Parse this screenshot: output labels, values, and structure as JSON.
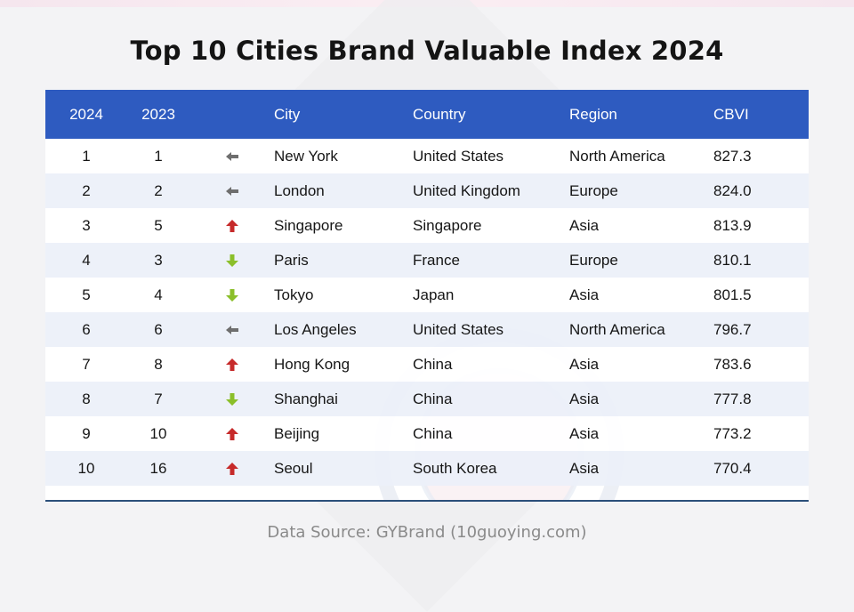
{
  "title": "Top 10 Cities Brand Valuable Index 2024",
  "source": "Data Source: GYBrand (10guoying.com)",
  "columns": {
    "rank2024": "2024",
    "rank2023": "2023",
    "city": "City",
    "country": "Country",
    "region": "Region",
    "cbvi": "CBVI"
  },
  "colors": {
    "header": "#2e5bc0",
    "up": "#c62a2a",
    "down": "#8bbf2a",
    "same": "#6e6e6e"
  },
  "chart_data": {
    "type": "table",
    "title": "Top 10 Cities Brand Valuable Index 2024",
    "columns": [
      "2024",
      "2023",
      "",
      "City",
      "Country",
      "Region",
      "CBVI"
    ],
    "rows": [
      {
        "rank2024": "1",
        "rank2023": "1",
        "trend": "same",
        "city": "New York",
        "country": "United States",
        "region": "North America",
        "cbvi": "827.3"
      },
      {
        "rank2024": "2",
        "rank2023": "2",
        "trend": "same",
        "city": "London",
        "country": "United Kingdom",
        "region": "Europe",
        "cbvi": "824.0"
      },
      {
        "rank2024": "3",
        "rank2023": "5",
        "trend": "up",
        "city": "Singapore",
        "country": "Singapore",
        "region": "Asia",
        "cbvi": "813.9"
      },
      {
        "rank2024": "4",
        "rank2023": "3",
        "trend": "down",
        "city": "Paris",
        "country": "France",
        "region": "Europe",
        "cbvi": "810.1"
      },
      {
        "rank2024": "5",
        "rank2023": "4",
        "trend": "down",
        "city": "Tokyo",
        "country": "Japan",
        "region": "Asia",
        "cbvi": "801.5"
      },
      {
        "rank2024": "6",
        "rank2023": "6",
        "trend": "same",
        "city": "Los Angeles",
        "country": "United States",
        "region": "North America",
        "cbvi": "796.7"
      },
      {
        "rank2024": "7",
        "rank2023": "8",
        "trend": "up",
        "city": "Hong Kong",
        "country": "China",
        "region": "Asia",
        "cbvi": "783.6"
      },
      {
        "rank2024": "8",
        "rank2023": "7",
        "trend": "down",
        "city": "Shanghai",
        "country": "China",
        "region": "Asia",
        "cbvi": "777.8"
      },
      {
        "rank2024": "9",
        "rank2023": "10",
        "trend": "up",
        "city": "Beijing",
        "country": "China",
        "region": "Asia",
        "cbvi": "773.2"
      },
      {
        "rank2024": "10",
        "rank2023": "16",
        "trend": "up",
        "city": "Seoul",
        "country": "South Korea",
        "region": "Asia",
        "cbvi": "770.4"
      }
    ]
  }
}
